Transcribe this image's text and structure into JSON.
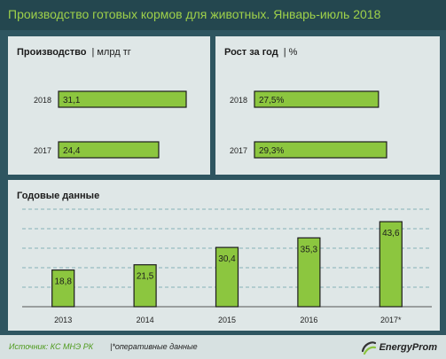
{
  "header": {
    "title": "Производство готовых кормов для животных. Январь-июль 2018"
  },
  "colors": {
    "bar": "#8cc63f",
    "bar_stroke": "#1c1c1c",
    "grid": "#6aa0a8",
    "background": "#2e5560",
    "panel": "#dfe7e7",
    "title": "#9ed04a"
  },
  "chart_data": [
    {
      "type": "bar",
      "orientation": "horizontal",
      "title": "Производство",
      "unit": "| млрд тг",
      "categories": [
        "2018",
        "2017"
      ],
      "values": [
        31.1,
        24.4
      ],
      "value_labels": [
        "31,1",
        "24,4"
      ],
      "xlim": [
        0,
        31.1
      ]
    },
    {
      "type": "bar",
      "orientation": "horizontal",
      "title": "Рост за год",
      "unit": "| %",
      "categories": [
        "2018",
        "2017"
      ],
      "values": [
        27.5,
        29.3
      ],
      "value_labels": [
        "27,5%",
        "29,3%"
      ],
      "xlim": [
        0,
        29.3
      ]
    },
    {
      "type": "bar",
      "title": "Годовые данные",
      "categories": [
        "2013",
        "2014",
        "2015",
        "2016",
        "2017*"
      ],
      "values": [
        18.8,
        21.5,
        30.4,
        35.3,
        43.6
      ],
      "value_labels": [
        "18,8",
        "21,5",
        "30,4",
        "35,3",
        "43,6"
      ],
      "ylim": [
        0,
        50
      ],
      "grid": true
    }
  ],
  "footer": {
    "source": "Источник: КС МНЭ РК",
    "note": "|*оперативные данные",
    "logo_text": "EnergyProm",
    "logo_icon": "energyprom-logo-icon"
  }
}
